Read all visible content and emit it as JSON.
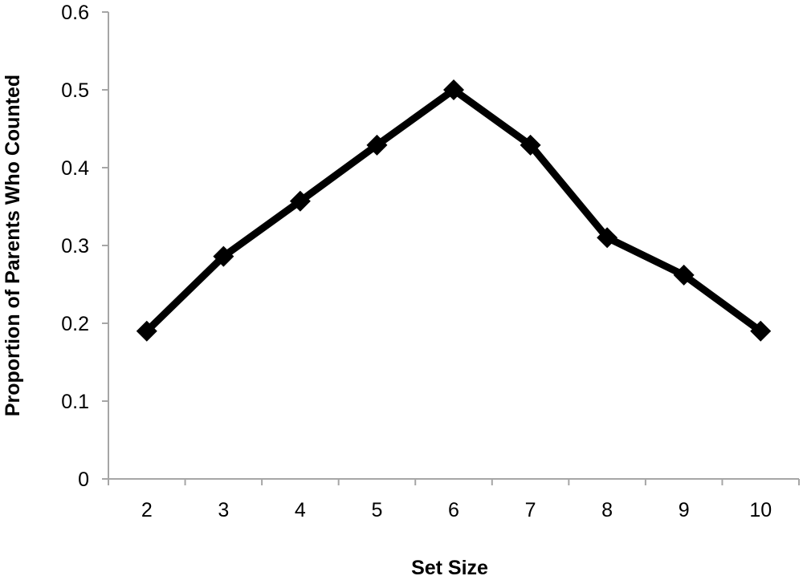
{
  "chart_data": {
    "type": "line",
    "title": "",
    "xlabel": "Set Size",
    "ylabel": "Proportion of Parents Who Counted",
    "categories": [
      "2",
      "3",
      "4",
      "5",
      "6",
      "7",
      "8",
      "9",
      "10"
    ],
    "series": [
      {
        "values": [
          0.19,
          0.286,
          0.357,
          0.429,
          0.5,
          0.429,
          0.31,
          0.262,
          0.19
        ],
        "color": "#000000",
        "marker": "diamond"
      }
    ],
    "ylim": [
      0,
      0.6
    ],
    "yticks": [
      "0",
      "0.1",
      "0.2",
      "0.3",
      "0.4",
      "0.5",
      "0.6"
    ],
    "grid": false,
    "legend": "none"
  }
}
